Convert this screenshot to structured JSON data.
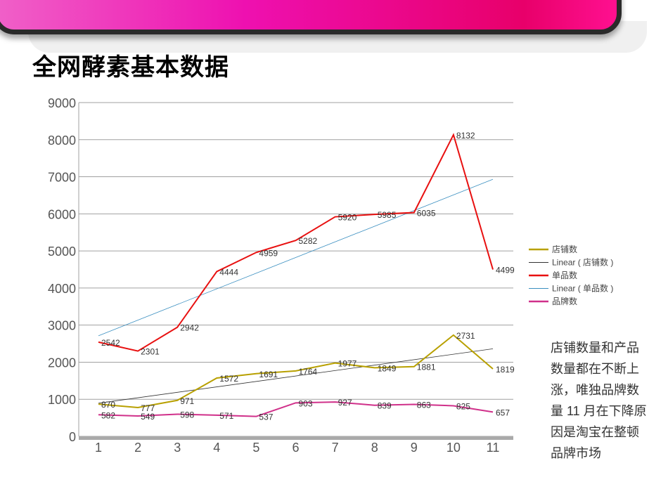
{
  "title": "全网酵素基本数据",
  "note": "店铺数量和产品数量都在不断上涨，唯独品牌数量 11 月在下降原因是淘宝在整顿品牌市场",
  "chart_data": {
    "type": "line",
    "categories": [
      "1",
      "2",
      "3",
      "4",
      "5",
      "6",
      "7",
      "8",
      "9",
      "10",
      "11"
    ],
    "ylim": [
      0,
      9000
    ],
    "yticks": [
      "0",
      "1000",
      "2000",
      "3000",
      "4000",
      "5000",
      "6000",
      "7000",
      "8000",
      "9000"
    ],
    "grid": true,
    "legend_position": "right",
    "series": [
      {
        "name": "店铺数",
        "color": "#b8a000",
        "values": [
          870,
          777,
          971,
          1572,
          1691,
          1764,
          1977,
          1849,
          1881,
          2731,
          1819
        ]
      },
      {
        "name": "单品数",
        "color": "#e81010",
        "values": [
          2542,
          2301,
          2942,
          4444,
          4959,
          5282,
          5920,
          5985,
          6035,
          8132,
          4499
        ]
      },
      {
        "name": "品牌数",
        "color": "#d0308a",
        "values": [
          582,
          549,
          598,
          571,
          537,
          903,
          927,
          839,
          863,
          825,
          657
        ]
      }
    ],
    "trendlines": [
      {
        "name": "Linear ( 店铺数 )",
        "of": "店铺数",
        "color": "#333333"
      },
      {
        "name": "Linear ( 单品数 )",
        "of": "单品数",
        "color": "#3a8fc0"
      }
    ],
    "legend_order": [
      "店铺数",
      "Linear ( 店铺数 )",
      "单品数",
      "Linear ( 单品数 )",
      "品牌数"
    ]
  }
}
